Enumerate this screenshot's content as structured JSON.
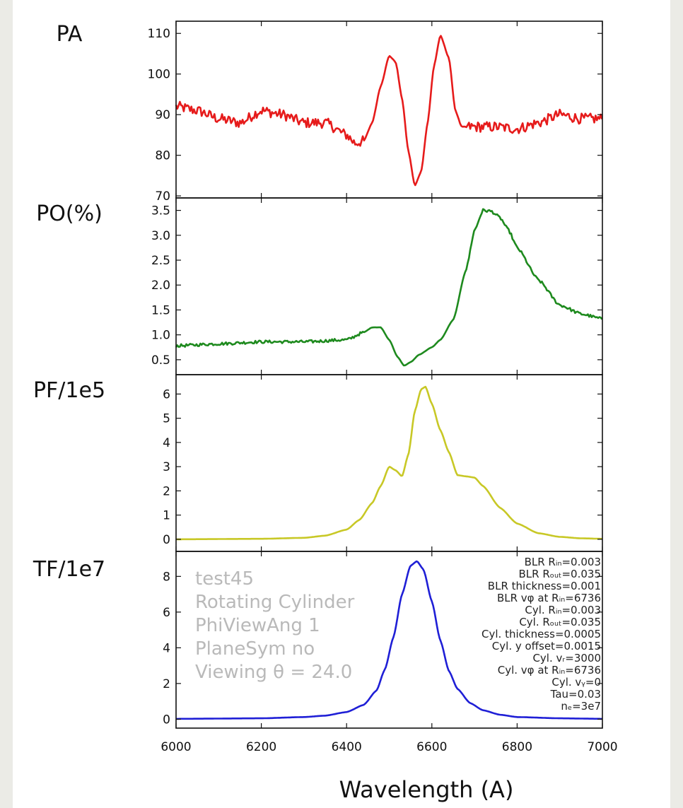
{
  "xlabel": "Wavelength (A)",
  "chart_data": [
    {
      "type": "line",
      "title": "PA",
      "color": "#e61b1b",
      "xlim": [
        6000,
        7000
      ],
      "ylim": [
        69.5,
        113
      ],
      "yticks": [
        70,
        80,
        90,
        100,
        110
      ],
      "ytick_labels": [
        "70",
        "80",
        "90",
        "100",
        "110"
      ],
      "xticks": [
        6000,
        6200,
        6400,
        6600,
        6800,
        7000
      ],
      "noise": 2.6,
      "x": [
        6000,
        6050,
        6100,
        6150,
        6200,
        6250,
        6300,
        6350,
        6400,
        6420,
        6440,
        6460,
        6480,
        6500,
        6515,
        6530,
        6545,
        6560,
        6575,
        6590,
        6605,
        6620,
        6640,
        6655,
        6670,
        6700,
        6750,
        6800,
        6850,
        6900,
        6950,
        7000
      ],
      "y": [
        92,
        91,
        89,
        88,
        91,
        90,
        88,
        88,
        85,
        83,
        83.5,
        88,
        97,
        104.5,
        103,
        94,
        81,
        72.5,
        76,
        88,
        102,
        109.5,
        104,
        91,
        87,
        87,
        87,
        86.5,
        88,
        90,
        89,
        89
      ]
    },
    {
      "type": "line",
      "title": "PO(%)",
      "color": "#1e8a1e",
      "xlim": [
        6000,
        7000
      ],
      "ylim": [
        0.2,
        3.75
      ],
      "yticks": [
        0.5,
        1.0,
        1.5,
        2.0,
        2.5,
        3.0,
        3.5
      ],
      "ytick_labels": [
        "0.5",
        "1.0",
        "1.5",
        "2.0",
        "2.5",
        "3.0",
        "3.5"
      ],
      "xticks": [
        6000,
        6200,
        6400,
        6600,
        6800,
        7000
      ],
      "noise": 0.06,
      "x": [
        6000,
        6100,
        6200,
        6300,
        6400,
        6440,
        6460,
        6480,
        6500,
        6520,
        6535,
        6550,
        6570,
        6600,
        6620,
        6650,
        6680,
        6700,
        6720,
        6740,
        6760,
        6780,
        6800,
        6850,
        6900,
        6950,
        7000
      ],
      "y": [
        0.78,
        0.82,
        0.86,
        0.86,
        0.9,
        1.05,
        1.15,
        1.15,
        0.9,
        0.55,
        0.38,
        0.45,
        0.6,
        0.75,
        0.9,
        1.3,
        2.3,
        3.1,
        3.5,
        3.48,
        3.35,
        3.1,
        2.75,
        2.1,
        1.6,
        1.42,
        1.32
      ]
    },
    {
      "type": "line",
      "title": "PF/1e5",
      "color": "#c8c826",
      "xlim": [
        6000,
        7000
      ],
      "ylim": [
        -0.5,
        6.8
      ],
      "yticks": [
        0,
        1,
        2,
        3,
        4,
        5,
        6
      ],
      "ytick_labels": [
        "0",
        "1",
        "2",
        "3",
        "4",
        "5",
        "6"
      ],
      "xticks": [
        6000,
        6200,
        6400,
        6600,
        6800,
        7000
      ],
      "noise": 0,
      "x": [
        6000,
        6200,
        6300,
        6350,
        6400,
        6430,
        6460,
        6480,
        6500,
        6515,
        6530,
        6545,
        6560,
        6575,
        6585,
        6600,
        6620,
        6640,
        6660,
        6680,
        6700,
        6720,
        6760,
        6800,
        6850,
        6900,
        6950,
        7000
      ],
      "y": [
        0,
        0.02,
        0.06,
        0.15,
        0.4,
        0.8,
        1.5,
        2.2,
        3.0,
        2.85,
        2.6,
        3.5,
        5.3,
        6.2,
        6.3,
        5.6,
        4.5,
        3.6,
        2.65,
        2.6,
        2.55,
        2.2,
        1.3,
        0.65,
        0.25,
        0.1,
        0.04,
        0.02
      ]
    },
    {
      "type": "line",
      "title": "TF/1e7",
      "color": "#1f1fd6",
      "xlim": [
        6000,
        7000
      ],
      "ylim": [
        -0.5,
        9.4
      ],
      "yticks": [
        0,
        2,
        4,
        6,
        8
      ],
      "ytick_labels": [
        "0",
        "2",
        "4",
        "6",
        "8"
      ],
      "xticks": [
        6000,
        6200,
        6400,
        6600,
        6800,
        7000
      ],
      "xtick_labels": [
        "6000",
        "6200",
        "6400",
        "6600",
        "6800",
        "7000"
      ],
      "noise": 0,
      "x": [
        6000,
        6200,
        6300,
        6350,
        6400,
        6440,
        6470,
        6490,
        6510,
        6530,
        6550,
        6565,
        6580,
        6600,
        6620,
        6640,
        6660,
        6690,
        6720,
        6760,
        6800,
        6900,
        7000
      ],
      "y": [
        0.02,
        0.05,
        0.12,
        0.2,
        0.4,
        0.8,
        1.6,
        2.8,
        4.6,
        7.0,
        8.6,
        8.85,
        8.4,
        6.6,
        4.4,
        2.7,
        1.7,
        0.9,
        0.5,
        0.25,
        0.12,
        0.05,
        0.02
      ],
      "annotations_left": [
        "test45",
        "Rotating Cylinder",
        "PhiViewAng  1",
        "PlaneSym  no",
        "Viewing θ = 24.0"
      ],
      "annotations_right": [
        "BLR Rᵢₙ=0.003",
        "BLR Rₒᵤₜ=0.035",
        "BLR thickness=0.001",
        "BLR vφ at Rᵢₙ=6736",
        "Cyl. Rᵢₙ=0.003",
        "Cyl. Rₒᵤₜ=0.035",
        "Cyl. thickness=0.0005",
        "Cyl. y offset=0.0015",
        "Cyl. vᵣ=3000",
        "Cyl. vφ at Rᵢₙ=6736",
        "Cyl. vᵧ=0",
        "Tau=0.03",
        "nₑ=3e7"
      ]
    }
  ]
}
